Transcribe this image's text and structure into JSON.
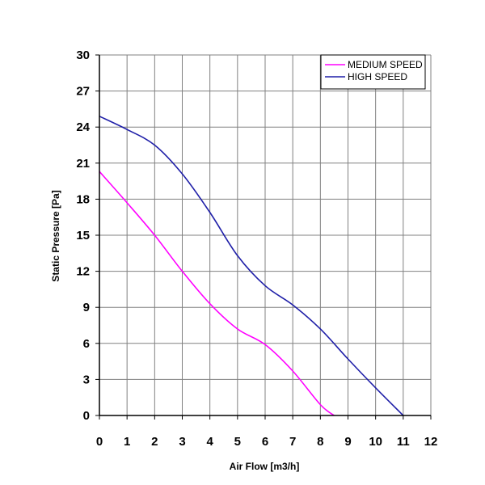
{
  "chart_data": {
    "type": "line",
    "xlabel": "Air Flow [m3/h]",
    "ylabel": "Static Pressure [Pa]",
    "xlim": [
      0,
      12
    ],
    "ylim": [
      0,
      30
    ],
    "x_ticks": [
      0,
      1,
      2,
      3,
      4,
      5,
      6,
      7,
      8,
      9,
      10,
      11,
      12
    ],
    "y_ticks": [
      0,
      3,
      6,
      9,
      12,
      15,
      18,
      21,
      24,
      27,
      30
    ],
    "grid": true,
    "legend_position": "top-right",
    "series": [
      {
        "name": "MEDIUM SPEED",
        "color": "#ff00ff",
        "points": [
          [
            0,
            20.3
          ],
          [
            1,
            17.7
          ],
          [
            2,
            15.0
          ],
          [
            3,
            12.0
          ],
          [
            4,
            9.3
          ],
          [
            5,
            7.2
          ],
          [
            6,
            5.9
          ],
          [
            7,
            3.7
          ],
          [
            8,
            0.9
          ],
          [
            8.5,
            0
          ]
        ]
      },
      {
        "name": "HIGH SPEED",
        "color": "#1f1fa8",
        "points": [
          [
            0,
            24.9
          ],
          [
            1,
            23.8
          ],
          [
            2,
            22.5
          ],
          [
            3,
            20.1
          ],
          [
            4,
            16.9
          ],
          [
            5,
            13.3
          ],
          [
            6,
            10.8
          ],
          [
            7,
            9.2
          ],
          [
            8,
            7.2
          ],
          [
            9,
            4.7
          ],
          [
            10,
            2.3
          ],
          [
            11,
            0
          ]
        ]
      }
    ]
  }
}
